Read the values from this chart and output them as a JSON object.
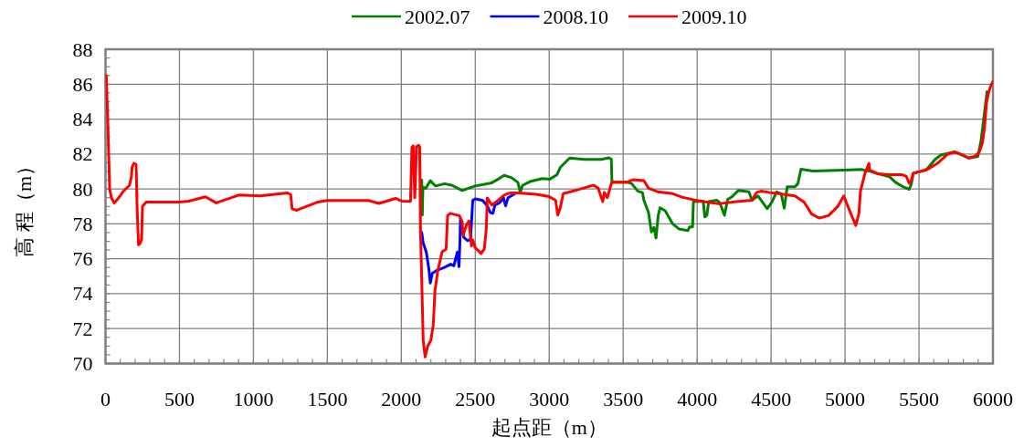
{
  "chart_data": {
    "type": "line",
    "xlabel": "起点距（m）",
    "ylabel": "高 程（m）",
    "legend": "top",
    "grid": true,
    "xlim": [
      0,
      6000
    ],
    "ylim": [
      70,
      88
    ],
    "xticks": [
      0,
      {
        "value": 100,
        "label": null
      },
      {
        "value": 200,
        "label": null
      },
      {
        "value": 300,
        "label": null
      },
      {
        "value": 400,
        "label": null
      },
      500,
      {
        "value": 600,
        "label": null
      },
      {
        "value": 700,
        "label": null
      },
      {
        "value": 800,
        "label": null
      },
      {
        "value": 900,
        "label": null
      },
      1000,
      {
        "value": 1100,
        "label": null
      },
      {
        "value": 1200,
        "label": null
      },
      {
        "value": 1300,
        "label": null
      },
      {
        "value": 1400,
        "label": null
      },
      1500,
      {
        "value": 1600,
        "label": null
      },
      {
        "value": 1700,
        "label": null
      },
      {
        "value": 1800,
        "label": null
      },
      {
        "value": 1900,
        "label": null
      },
      2000,
      {
        "value": 2100,
        "label": null
      },
      {
        "value": 2200,
        "label": null
      },
      {
        "value": 2300,
        "label": null
      },
      {
        "value": 2400,
        "label": null
      },
      2500,
      {
        "value": 2600,
        "label": null
      },
      {
        "value": 2700,
        "label": null
      },
      {
        "value": 2800,
        "label": null
      },
      {
        "value": 2900,
        "label": null
      },
      3000,
      {
        "value": 3100,
        "label": null
      },
      {
        "value": 3200,
        "label": null
      },
      {
        "value": 3300,
        "label": null
      },
      {
        "value": 3400,
        "label": null
      },
      3500,
      {
        "value": 3600,
        "label": null
      },
      {
        "value": 3700,
        "label": null
      },
      {
        "value": 3800,
        "label": null
      },
      {
        "value": 3900,
        "label": null
      },
      4000,
      {
        "value": 4100,
        "label": null
      },
      {
        "value": 4200,
        "label": null
      },
      {
        "value": 4300,
        "label": null
      },
      {
        "value": 4400,
        "label": null
      },
      4500,
      {
        "value": 4600,
        "label": null
      },
      {
        "value": 4700,
        "label": null
      },
      {
        "value": 4800,
        "label": null
      },
      {
        "value": 4900,
        "label": null
      },
      5000,
      {
        "value": 5100,
        "label": null
      },
      {
        "value": 5200,
        "label": null
      },
      {
        "value": 5300,
        "label": null
      },
      {
        "value": 5400,
        "label": null
      },
      5500,
      {
        "value": 5600,
        "label": null
      },
      {
        "value": 5700,
        "label": null
      },
      {
        "value": 5800,
        "label": null
      },
      {
        "value": 5900,
        "label": null
      },
      6000
    ],
    "yticks": [
      70,
      {
        "value": 70.5,
        "label": null
      },
      {
        "value": 71,
        "label": null
      },
      {
        "value": 71.5,
        "label": null
      },
      72,
      {
        "value": 72.5,
        "label": null
      },
      {
        "value": 73,
        "label": null
      },
      {
        "value": 73.5,
        "label": null
      },
      74,
      {
        "value": 74.5,
        "label": null
      },
      {
        "value": 75,
        "label": null
      },
      {
        "value": 75.5,
        "label": null
      },
      76,
      {
        "value": 76.5,
        "label": null
      },
      {
        "value": 77,
        "label": null
      },
      {
        "value": 77.5,
        "label": null
      },
      78,
      {
        "value": 78.5,
        "label": null
      },
      {
        "value": 79,
        "label": null
      },
      {
        "value": 79.5,
        "label": null
      },
      80,
      {
        "value": 80.5,
        "label": null
      },
      {
        "value": 81,
        "label": null
      },
      {
        "value": 81.5,
        "label": null
      },
      82,
      {
        "value": 82.5,
        "label": null
      },
      {
        "value": 83,
        "label": null
      },
      {
        "value": 83.5,
        "label": null
      },
      84,
      {
        "value": 84.5,
        "label": null
      },
      {
        "value": 85,
        "label": null
      },
      {
        "value": 85.5,
        "label": null
      },
      86,
      {
        "value": 86.5,
        "label": null
      },
      {
        "value": 87,
        "label": null
      },
      {
        "value": 87.5,
        "label": null
      },
      88
    ],
    "series": [
      {
        "name": "2002.07",
        "color": "#008000",
        "x": [
          2138,
          2142,
          2146,
          2165,
          2196,
          2231,
          2293,
          2344,
          2412,
          2499,
          2612,
          2654,
          2695,
          2746,
          2788,
          2804,
          2819,
          2870,
          2953,
          3004,
          3053,
          3076,
          3138,
          3239,
          3352,
          3403,
          3420,
          3424,
          3527,
          3558,
          3599,
          3630,
          3640,
          3671,
          3691,
          3708,
          3722,
          3737,
          3749,
          3784,
          3835,
          3877,
          3938,
          3949,
          3969,
          3975,
          4041,
          4052,
          4066,
          4078,
          4134,
          4154,
          4185,
          4206,
          4237,
          4278,
          4350,
          4371,
          4412,
          4473,
          4506,
          4537,
          4568,
          4589,
          4609,
          4661,
          4681,
          4702,
          4784,
          4991,
          5114,
          5176,
          5300,
          5341,
          5393,
          5434,
          5449,
          5461,
          5548,
          5609,
          5650,
          5743,
          5836,
          5898,
          5919,
          5943,
          5960
        ],
        "values": [
          80.5,
          78.5,
          80.1,
          80.03,
          80.47,
          80.17,
          80.3,
          80.2,
          79.91,
          80.17,
          80.35,
          80.56,
          80.78,
          80.64,
          80.38,
          79.8,
          80.2,
          80.42,
          80.59,
          80.56,
          80.82,
          81.25,
          81.77,
          81.69,
          81.69,
          81.78,
          81.7,
          80.39,
          80.39,
          80.3,
          79.87,
          79.79,
          79.35,
          78.66,
          77.54,
          77.8,
          77.19,
          78.49,
          78.92,
          78.75,
          78.0,
          77.71,
          77.62,
          77.83,
          77.83,
          79.27,
          79.3,
          78.4,
          78.5,
          79.27,
          79.35,
          79.2,
          78.49,
          79.39,
          79.56,
          79.91,
          79.84,
          79.35,
          79.6,
          78.87,
          79.25,
          79.83,
          79.72,
          78.9,
          80.12,
          80.12,
          80.3,
          81.13,
          81.03,
          81.08,
          81.11,
          80.99,
          80.7,
          80.38,
          80.12,
          79.98,
          80.3,
          80.9,
          81.08,
          81.69,
          81.95,
          82.12,
          81.77,
          81.86,
          82.73,
          84.38,
          85.57
        ]
      },
      {
        "name": "2008.10",
        "color": "#0000ff",
        "x": [
          2138,
          2148,
          2169,
          2186,
          2196,
          2210,
          2241,
          2293,
          2334,
          2355,
          2379,
          2390,
          2396,
          2400,
          2421,
          2447,
          2468,
          2483,
          2499,
          2551,
          2581,
          2602,
          2619,
          2633,
          2664,
          2691,
          2705,
          2722,
          2767
        ],
        "values": [
          77.51,
          76.9,
          76.38,
          75.43,
          74.61,
          75.17,
          75.34,
          75.51,
          75.69,
          75.6,
          76.38,
          75.55,
          76.9,
          78.3,
          77.25,
          77.04,
          77.11,
          79.34,
          79.43,
          79.34,
          79.03,
          78.64,
          78.6,
          79.08,
          79.2,
          79.48,
          79.03,
          79.5,
          79.72
        ]
      },
      {
        "name": "2009.10",
        "color": "#ff0000",
        "x": [
          5,
          15,
          28,
          40,
          59,
          90,
          120,
          162,
          175,
          180,
          192,
          207,
          213,
          223,
          235,
          244,
          250,
          275,
          500,
          563,
          676,
          748,
          902,
          1046,
          1231,
          1252,
          1262,
          1293,
          1437,
          1499,
          1777,
          1849,
          1962,
          2003,
          2062,
          2072,
          2080,
          2091,
          2103,
          2118,
          2124,
          2130,
          2138,
          2148,
          2161,
          2179,
          2200,
          2216,
          2227,
          2247,
          2276,
          2303,
          2313,
          2330,
          2392,
          2412,
          2417,
          2441,
          2458,
          2474,
          2483,
          2499,
          2540,
          2561,
          2575,
          2581,
          2612,
          2654,
          2695,
          2736,
          2788,
          2911,
          2994,
          3043,
          3058,
          3074,
          3095,
          3197,
          3300,
          3331,
          3362,
          3372,
          3393,
          3414,
          3424,
          3527,
          3568,
          3640,
          3671,
          3733,
          3835,
          3897,
          4021,
          4144,
          4268,
          4371,
          4401,
          4432,
          4494,
          4558,
          4661,
          4723,
          4774,
          4826,
          4888,
          4950,
          4991,
          5032,
          5073,
          5094,
          5104,
          5135,
          5162,
          5166,
          5218,
          5300,
          5383,
          5413,
          5434,
          5449,
          5461,
          5506,
          5568,
          5630,
          5692,
          5743,
          5795,
          5836,
          5877,
          5908,
          5929,
          5943,
          5956,
          5970,
          5985,
          6000
        ],
        "values": [
          86.5,
          84.0,
          80.0,
          79.5,
          79.2,
          79.5,
          79.86,
          80.2,
          80.7,
          81.25,
          81.46,
          81.4,
          79.1,
          76.8,
          76.9,
          77.1,
          79.0,
          79.25,
          79.25,
          79.3,
          79.55,
          79.2,
          79.65,
          79.6,
          79.77,
          79.68,
          78.85,
          78.78,
          79.25,
          79.34,
          79.34,
          79.17,
          79.46,
          79.3,
          79.29,
          82.38,
          82.47,
          79.5,
          82.43,
          82.5,
          82.4,
          77.5,
          74.8,
          71.34,
          70.38,
          71.0,
          71.34,
          72.2,
          74.12,
          75.34,
          76.4,
          76.56,
          78.47,
          78.6,
          78.47,
          78.1,
          77.34,
          77.95,
          78.16,
          76.73,
          77.08,
          76.64,
          76.3,
          76.56,
          77.77,
          79.48,
          79.08,
          79.34,
          79.65,
          79.77,
          79.77,
          79.69,
          79.58,
          79.35,
          78.5,
          78.9,
          79.73,
          79.96,
          80.22,
          80.04,
          79.27,
          79.8,
          79.5,
          80.13,
          80.39,
          80.39,
          80.53,
          80.48,
          80.04,
          79.84,
          79.73,
          79.53,
          79.3,
          79.15,
          79.27,
          79.35,
          79.79,
          79.87,
          79.79,
          79.72,
          79.6,
          79.25,
          78.56,
          78.33,
          78.47,
          78.99,
          79.6,
          78.73,
          77.91,
          78.6,
          79.86,
          80.9,
          81.46,
          81.08,
          80.87,
          80.82,
          80.82,
          80.73,
          80.33,
          80.5,
          80.9,
          80.99,
          81.17,
          81.5,
          81.98,
          82.12,
          81.95,
          81.77,
          81.86,
          82.12,
          82.64,
          83.5,
          84.9,
          85.5,
          85.9,
          86.16
        ]
      }
    ]
  }
}
